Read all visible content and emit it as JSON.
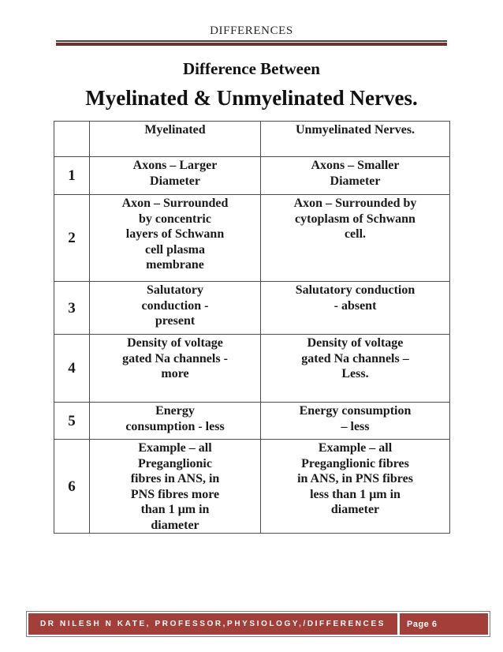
{
  "page": {
    "header_label": "DIFFERENCES",
    "title_line1": "Difference Between",
    "title_line2": "Myelinated & Unmyelinated Nerves."
  },
  "table": {
    "columns": [
      "",
      "Myelinated",
      "Unmyelinated Nerves."
    ],
    "rows": [
      {
        "num": "1",
        "myelinated": "Axons – Larger\nDiameter",
        "unmyelinated": "Axons – Smaller\nDiameter"
      },
      {
        "num": "2",
        "myelinated": "Axon – Surrounded\nby concentric\nlayers of Schwann\ncell plasma\nmembrane",
        "unmyelinated": "Axon – Surrounded by\ncytoplasm of Schwann\ncell."
      },
      {
        "num": "3",
        "myelinated": "Salutatory\nconduction -\npresent",
        "unmyelinated": "Salutatory conduction\n- absent"
      },
      {
        "num": "4",
        "myelinated": "Density of voltage\ngated Na channels -\nmore",
        "unmyelinated": "Density of voltage\ngated Na channels –\nLess."
      },
      {
        "num": "5",
        "myelinated": "Energy\nconsumption - less",
        "unmyelinated": "Energy consumption\n– less"
      },
      {
        "num": "6",
        "myelinated": "Example – all\nPreganglionic\nfibres in ANS, in\nPNS fibres more\nthan 1 μm in\ndiameter",
        "unmyelinated": "Example – all\nPreganglionic fibres\nin ANS, in PNS fibres\nless than 1 μm in\ndiameter"
      }
    ]
  },
  "footer": {
    "author_text": "DR NILESH N KATE, PROFESSOR,PHYSIOLOGY,/DIFFERENCES",
    "page_label": "Page 6"
  },
  "colors": {
    "accent_rule_maroon": "#703030",
    "footer_red": "#a33e38",
    "table_border": "#4d4d4d",
    "text": "#1a1a1a"
  }
}
